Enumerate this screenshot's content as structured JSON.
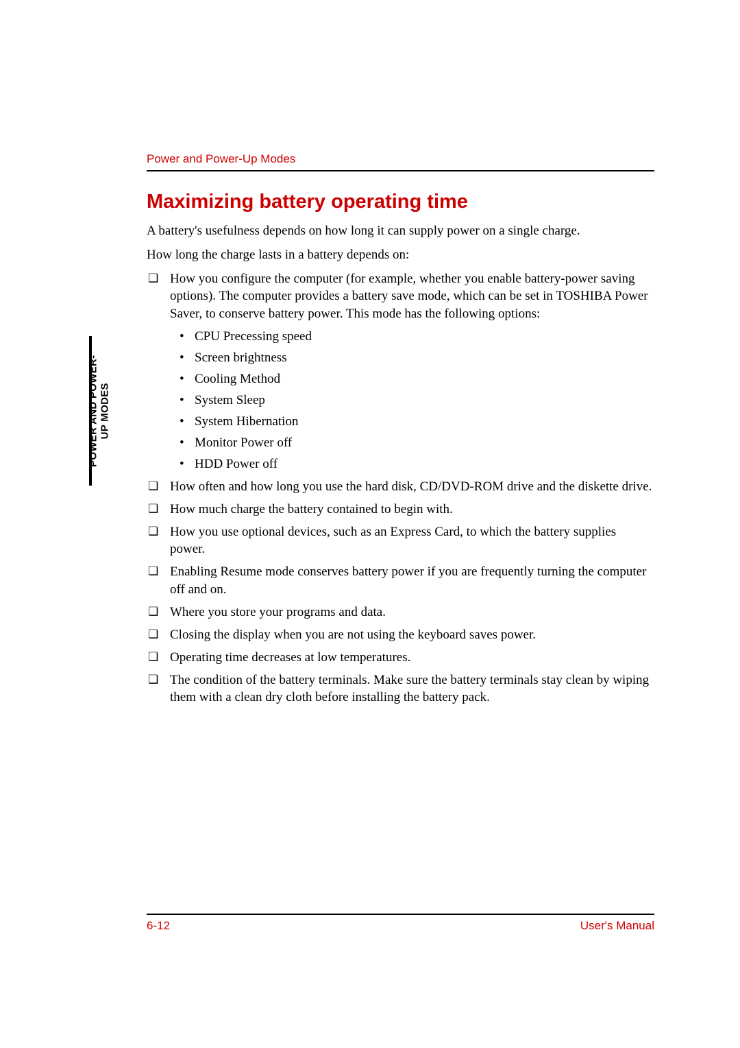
{
  "running_head": "Power and Power-Up Modes",
  "side_tab": {
    "line1": "POWER AND POWER-",
    "line2": "UP MODES"
  },
  "title": "Maximizing battery operating time",
  "intro_paragraphs": [
    "A battery's usefulness depends on how long it can supply power on a single charge.",
    "How long the charge lasts in a battery depends on:"
  ],
  "list": [
    {
      "text": "How you configure the computer (for example, whether you enable battery-power saving options). The computer provides a battery save mode, which can be set in TOSHIBA Power Saver, to conserve battery power. This mode has the following options:",
      "sublist": [
        "CPU Precessing speed",
        "Screen brightness",
        "Cooling Method",
        "System Sleep",
        "System Hibernation",
        "Monitor Power off",
        "HDD Power off"
      ]
    },
    {
      "text": "How often and how long you use the hard disk, CD/DVD-ROM drive and the diskette drive."
    },
    {
      "text": "How much charge the battery contained to begin with."
    },
    {
      "text": "How you use optional devices, such as an Express Card, to which the battery supplies power."
    },
    {
      "text": "Enabling Resume mode conserves battery power if you are frequently turning the computer off and on."
    },
    {
      "text": "Where you store your programs and data."
    },
    {
      "text": "Closing the display when you are not using the keyboard saves power."
    },
    {
      "text": "Operating time decreases at low temperatures."
    },
    {
      "text": "The condition of the battery terminals. Make sure the battery terminals stay clean by wiping them with a clean dry cloth before installing the battery pack."
    }
  ],
  "footer": {
    "page_number": "6-12",
    "manual_label": "User's Manual"
  },
  "colors": {
    "accent": "#cc0000",
    "text": "#000000",
    "background": "#ffffff"
  }
}
